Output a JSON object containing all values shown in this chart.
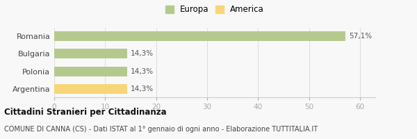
{
  "categories": [
    "Argentina",
    "Polonia",
    "Bulgaria",
    "Romania"
  ],
  "values": [
    14.3,
    14.3,
    14.3,
    57.1
  ],
  "labels": [
    "14,3%",
    "14,3%",
    "14,3%",
    "57,1%"
  ],
  "colors": [
    "#f9d57a",
    "#b5c98e",
    "#b5c98e",
    "#b5c98e"
  ],
  "legend": [
    {
      "label": "Europa",
      "color": "#b5c98e"
    },
    {
      "label": "America",
      "color": "#f9d57a"
    }
  ],
  "xlim": [
    0,
    63
  ],
  "xticks": [
    0,
    10,
    20,
    30,
    40,
    50,
    60
  ],
  "title_bold": "Cittadini Stranieri per Cittadinanza",
  "subtitle": "COMUNE DI CANNA (CS) - Dati ISTAT al 1° gennaio di ogni anno - Elaborazione TUTTITALIA.IT",
  "bg_color": "#f8f8f8",
  "bar_height": 0.55,
  "label_fontsize": 7.5,
  "tick_fontsize": 7.5,
  "ytick_fontsize": 8.0
}
